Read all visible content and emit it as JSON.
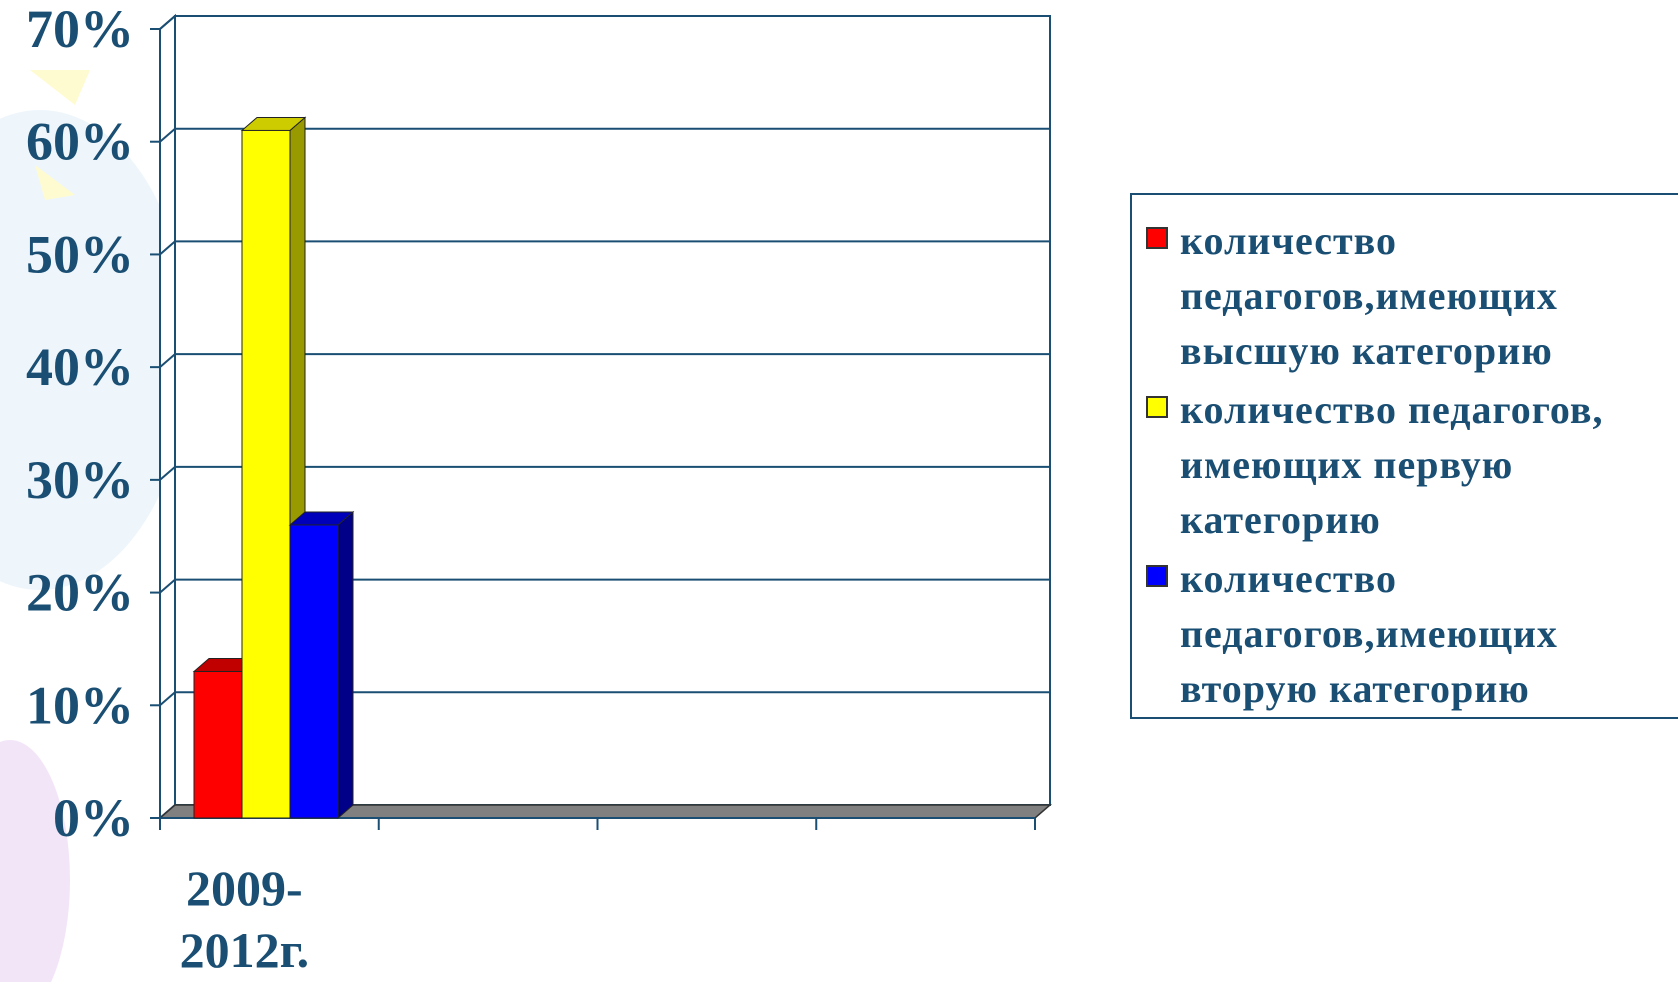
{
  "chart_data": {
    "type": "bar",
    "title": "",
    "xlabel": "",
    "ylabel": "",
    "categories": [
      "2009-2012г."
    ],
    "category_lines": [
      [
        "2009-",
        "2012г."
      ]
    ],
    "ylim": [
      0,
      70
    ],
    "yticks": [
      0,
      10,
      20,
      30,
      40,
      50,
      60,
      70
    ],
    "ytick_labels": [
      "0%",
      "10%",
      "20%",
      "30%",
      "40%",
      "50%",
      "60%",
      "70%"
    ],
    "grid": true,
    "legend_position": "right",
    "series": [
      {
        "name": "количество педагогов,имеющих высшую категорию",
        "values": [
          13
        ],
        "color": "#ff0000",
        "color_side": "#a00000",
        "color_top": "#c00000"
      },
      {
        "name": "количество педагогов, имеющих первую категорию",
        "values": [
          61
        ],
        "color": "#ffff00",
        "color_side": "#999900",
        "color_top": "#cccc00"
      },
      {
        "name": "количество педагогов,имеющих вторую категорию",
        "values": [
          26
        ],
        "color": "#0000ff",
        "color_side": "#000088",
        "color_top": "#0000bb"
      }
    ]
  }
}
